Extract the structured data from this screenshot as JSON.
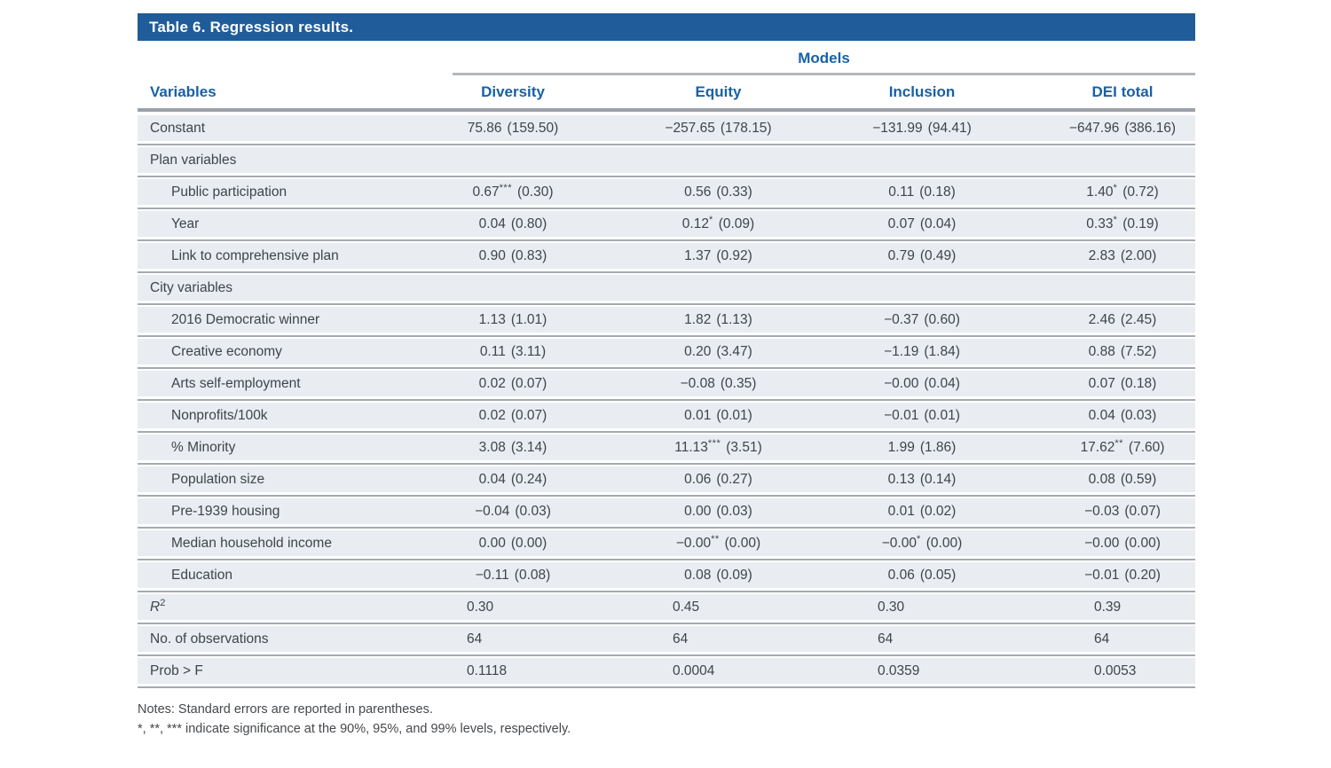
{
  "colors": {
    "title_bar_bg": "#1f5c99",
    "heading_text": "#1761a8",
    "row_bg": "#e9edf2",
    "rule_gray": "#a5aab0",
    "body_text": "#3f444b"
  },
  "table": {
    "title": "Table 6. Regression results.",
    "models_label": "Models",
    "columns": [
      "Variables",
      "Diversity",
      "Equity",
      "Inclusion",
      "DEI total"
    ],
    "rows": [
      {
        "type": "data",
        "label": "Constant",
        "cells": [
          {
            "v": "75.86",
            "sup": "",
            "se": "(159.50)"
          },
          {
            "v": "−257.65",
            "sup": "",
            "se": "(178.15)"
          },
          {
            "v": "−131.99",
            "sup": "",
            "se": "(94.41)"
          },
          {
            "v": "−647.96",
            "sup": "",
            "se": "(386.16)"
          }
        ]
      },
      {
        "type": "section",
        "label": "Plan variables"
      },
      {
        "type": "data",
        "label": "Public participation",
        "cells": [
          {
            "v": "0.67",
            "sup": "***",
            "se": "(0.30)"
          },
          {
            "v": "0.56",
            "sup": "",
            "se": "(0.33)"
          },
          {
            "v": "0.11",
            "sup": "",
            "se": "(0.18)"
          },
          {
            "v": "1.40",
            "sup": "*",
            "se": "(0.72)"
          }
        ]
      },
      {
        "type": "data",
        "label": "Year",
        "cells": [
          {
            "v": "0.04",
            "sup": "",
            "se": "(0.80)"
          },
          {
            "v": "0.12",
            "sup": "*",
            "se": "(0.09)"
          },
          {
            "v": "0.07",
            "sup": "",
            "se": "(0.04)"
          },
          {
            "v": "0.33",
            "sup": "*",
            "se": "(0.19)"
          }
        ]
      },
      {
        "type": "data",
        "label": "Link to comprehensive plan",
        "cells": [
          {
            "v": "0.90",
            "sup": "",
            "se": "(0.83)"
          },
          {
            "v": "1.37",
            "sup": "",
            "se": "(0.92)"
          },
          {
            "v": "0.79",
            "sup": "",
            "se": "(0.49)"
          },
          {
            "v": "2.83",
            "sup": "",
            "se": "(2.00)"
          }
        ]
      },
      {
        "type": "section",
        "label": "City variables"
      },
      {
        "type": "data",
        "label": "2016 Democratic winner",
        "cells": [
          {
            "v": "1.13",
            "sup": "",
            "se": "(1.01)"
          },
          {
            "v": "1.82",
            "sup": "",
            "se": "(1.13)"
          },
          {
            "v": "−0.37",
            "sup": "",
            "se": "(0.60)"
          },
          {
            "v": "2.46",
            "sup": "",
            "se": "(2.45)"
          }
        ]
      },
      {
        "type": "data",
        "label": "Creative economy",
        "cells": [
          {
            "v": "0.11",
            "sup": "",
            "se": "(3.11)"
          },
          {
            "v": "0.20",
            "sup": "",
            "se": "(3.47)"
          },
          {
            "v": "−1.19",
            "sup": "",
            "se": "(1.84)"
          },
          {
            "v": "0.88",
            "sup": "",
            "se": "(7.52)"
          }
        ]
      },
      {
        "type": "data",
        "label": "Arts self-employment",
        "cells": [
          {
            "v": "0.02",
            "sup": "",
            "se": "(0.07)"
          },
          {
            "v": "−0.08",
            "sup": "",
            "se": "(0.35)"
          },
          {
            "v": "−0.00",
            "sup": "",
            "se": "(0.04)"
          },
          {
            "v": "0.07",
            "sup": "",
            "se": "(0.18)"
          }
        ]
      },
      {
        "type": "data",
        "label": "Nonprofits/100k",
        "cells": [
          {
            "v": "0.02",
            "sup": "",
            "se": "(0.07)"
          },
          {
            "v": "0.01",
            "sup": "",
            "se": "(0.01)"
          },
          {
            "v": "−0.01",
            "sup": "",
            "se": "(0.01)"
          },
          {
            "v": "0.04",
            "sup": "",
            "se": "(0.03)"
          }
        ]
      },
      {
        "type": "data",
        "label": "% Minority",
        "cells": [
          {
            "v": "3.08",
            "sup": "",
            "se": "(3.14)"
          },
          {
            "v": "11.13",
            "sup": "***",
            "se": "(3.51)"
          },
          {
            "v": "1.99",
            "sup": "",
            "se": "(1.86)"
          },
          {
            "v": "17.62",
            "sup": "**",
            "se": "(7.60)"
          }
        ]
      },
      {
        "type": "data",
        "label": "Population size",
        "cells": [
          {
            "v": "0.04",
            "sup": "",
            "se": "(0.24)"
          },
          {
            "v": "0.06",
            "sup": "",
            "se": "(0.27)"
          },
          {
            "v": "0.13",
            "sup": "",
            "se": "(0.14)"
          },
          {
            "v": "0.08",
            "sup": "",
            "se": "(0.59)"
          }
        ]
      },
      {
        "type": "data",
        "label": "Pre-1939 housing",
        "cells": [
          {
            "v": "−0.04",
            "sup": "",
            "se": "(0.03)"
          },
          {
            "v": "0.00",
            "sup": "",
            "se": "(0.03)"
          },
          {
            "v": "0.01",
            "sup": "",
            "se": "(0.02)"
          },
          {
            "v": "−0.03",
            "sup": "",
            "se": "(0.07)"
          }
        ]
      },
      {
        "type": "data",
        "label": "Median household income",
        "cells": [
          {
            "v": "0.00",
            "sup": "",
            "se": "(0.00)"
          },
          {
            "v": "−0.00",
            "sup": "**",
            "se": "(0.00)"
          },
          {
            "v": "−0.00",
            "sup": "*",
            "se": "(0.00)"
          },
          {
            "v": "−0.00",
            "sup": "",
            "se": "(0.00)"
          }
        ]
      },
      {
        "type": "data",
        "label": "Education",
        "cells": [
          {
            "v": "−0.11",
            "sup": "",
            "se": "(0.08)"
          },
          {
            "v": "0.08",
            "sup": "",
            "se": "(0.09)"
          },
          {
            "v": "0.06",
            "sup": "",
            "se": "(0.05)"
          },
          {
            "v": "−0.01",
            "sup": "",
            "se": "(0.20)"
          }
        ]
      },
      {
        "type": "summary",
        "label": "R",
        "label_sup": "2",
        "cells": [
          {
            "v": "0.30"
          },
          {
            "v": "0.45"
          },
          {
            "v": "0.30"
          },
          {
            "v": "0.39"
          }
        ]
      },
      {
        "type": "summary",
        "label": "No. of observations",
        "cells": [
          {
            "v": "64"
          },
          {
            "v": "64"
          },
          {
            "v": "64"
          },
          {
            "v": "64"
          }
        ]
      },
      {
        "type": "summary",
        "label": "Prob > F",
        "cells": [
          {
            "v": "0.1118"
          },
          {
            "v": "0.0004"
          },
          {
            "v": "0.0359"
          },
          {
            "v": "0.0053"
          }
        ]
      }
    ],
    "notes": [
      "Notes: Standard errors are reported in parentheses.",
      "*, **, *** indicate significance at the 90%, 95%, and 99% levels, respectively."
    ]
  }
}
